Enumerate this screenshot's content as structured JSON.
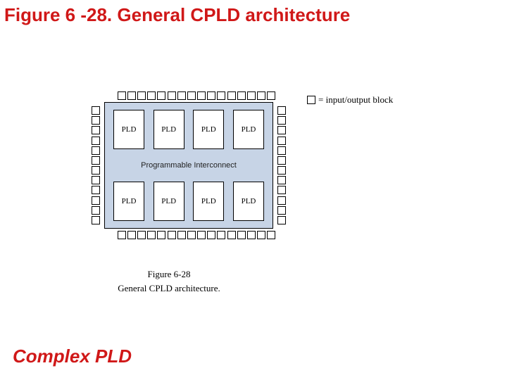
{
  "title": "Figure 6 -28. General CPLD architecture",
  "footer": "Complex PLD",
  "legend_text": "= input/output block",
  "caption_line1": "Figure 6-28",
  "caption_line2": "General CPLD architecture.",
  "diagram": {
    "type": "infographic",
    "pld_label": "PLD",
    "interconnect_label": "Programmable Interconnect",
    "top_io_count": 16,
    "side_io_count": 12,
    "pld_per_row": 4,
    "pld_rows": 2,
    "colors": {
      "inner_bg": "#c7d4e6",
      "pld_bg": "#ffffff",
      "border": "#000000",
      "page_bg": "#ffffff",
      "title_color": "#d01818"
    },
    "fontsizes": {
      "title": 26,
      "footer": 26,
      "pld_label": 11,
      "interconnect": 11,
      "legend": 13,
      "caption": 13
    }
  }
}
